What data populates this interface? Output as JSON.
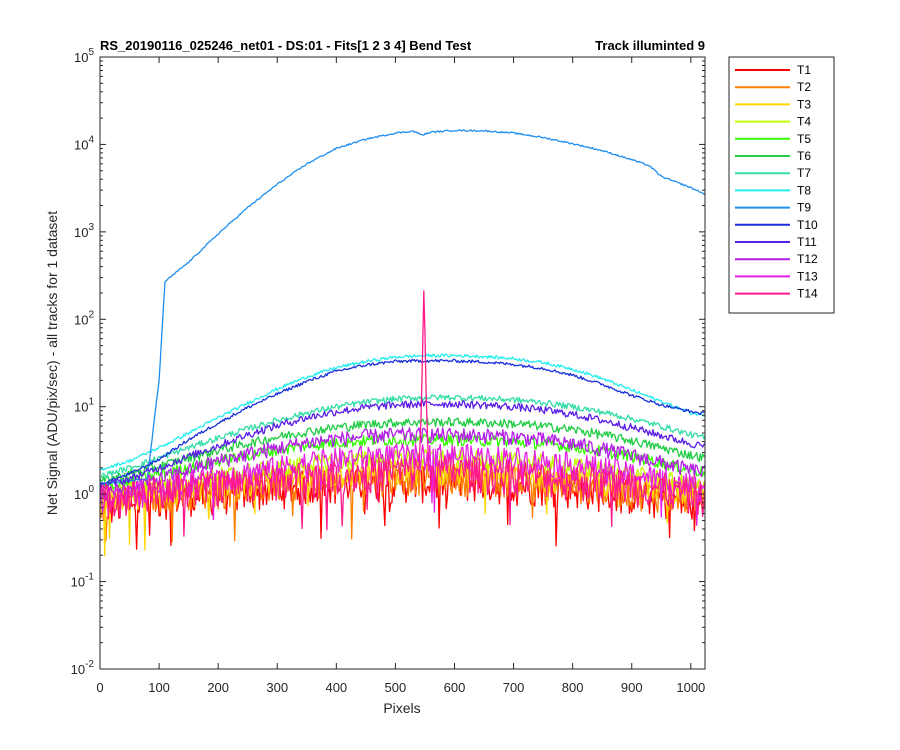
{
  "chart_data": {
    "type": "line",
    "title": "RS_20190116_025246_net01 - DS:01 - Fits[1  2  3  4]   Bend Test",
    "title_right": "Track illuminted 9",
    "xlabel": "Pixels",
    "ylabel": "Net Signal (ADU/pix/sec) - all tracks for 1 dataset",
    "xlim": [
      0,
      1024
    ],
    "ylim": [
      0.01,
      100000
    ],
    "yscale": "log",
    "grid": false,
    "legend_position": "outside-right",
    "x_ticks": [
      0,
      100,
      200,
      300,
      400,
      500,
      600,
      700,
      800,
      900,
      1000
    ],
    "y_ticks": [
      {
        "base": "10",
        "exp": "-2",
        "value": 0.01
      },
      {
        "base": "10",
        "exp": "-1",
        "value": 0.1
      },
      {
        "base": "10",
        "exp": "0",
        "value": 1
      },
      {
        "base": "10",
        "exp": "1",
        "value": 10
      },
      {
        "base": "10",
        "exp": "2",
        "value": 100
      },
      {
        "base": "10",
        "exp": "3",
        "value": 1000
      },
      {
        "base": "10",
        "exp": "4",
        "value": 10000
      },
      {
        "base": "10",
        "exp": "5",
        "value": 100000
      }
    ],
    "series": [
      {
        "name": "T1",
        "color": "#ff0000",
        "x": [
          0,
          50,
          100,
          150,
          200,
          250,
          300,
          350,
          400,
          450,
          500,
          550,
          600,
          650,
          700,
          750,
          800,
          850,
          900,
          950,
          1000,
          1024
        ],
        "y": [
          0.7,
          0.8,
          0.9,
          1.0,
          1.0,
          1.1,
          1.2,
          1.3,
          1.3,
          1.4,
          1.4,
          1.4,
          1.4,
          1.4,
          1.3,
          1.3,
          1.2,
          1.1,
          1.0,
          0.9,
          0.8,
          0.8
        ],
        "noise": 0.45
      },
      {
        "name": "T2",
        "color": "#ff7f00",
        "x": [
          0,
          50,
          100,
          150,
          200,
          250,
          300,
          350,
          400,
          450,
          500,
          550,
          600,
          650,
          700,
          750,
          800,
          850,
          900,
          950,
          1000,
          1024
        ],
        "y": [
          0.8,
          0.9,
          1.0,
          1.1,
          1.1,
          1.2,
          1.3,
          1.4,
          1.5,
          1.5,
          1.6,
          1.6,
          1.6,
          1.5,
          1.5,
          1.4,
          1.3,
          1.2,
          1.1,
          1.0,
          0.9,
          0.9
        ],
        "noise": 0.4
      },
      {
        "name": "T3",
        "color": "#ffd700",
        "x": [
          0,
          50,
          100,
          150,
          200,
          250,
          300,
          350,
          400,
          450,
          500,
          550,
          600,
          650,
          700,
          750,
          800,
          850,
          900,
          950,
          1000,
          1024
        ],
        "y": [
          0.9,
          1.0,
          1.1,
          1.2,
          1.3,
          1.4,
          1.5,
          1.6,
          1.7,
          1.8,
          1.8,
          1.9,
          1.8,
          1.8,
          1.7,
          1.6,
          1.5,
          1.4,
          1.3,
          1.2,
          1.1,
          1.0
        ],
        "noise": 0.35
      },
      {
        "name": "T4",
        "color": "#bfff00",
        "x": [
          0,
          50,
          100,
          150,
          200,
          250,
          300,
          350,
          400,
          450,
          500,
          550,
          600,
          650,
          700,
          750,
          800,
          850,
          900,
          950,
          1000,
          1024
        ],
        "y": [
          1.0,
          1.1,
          1.3,
          1.4,
          1.6,
          1.8,
          2.0,
          2.2,
          2.4,
          2.5,
          2.6,
          2.6,
          2.6,
          2.5,
          2.4,
          2.3,
          2.1,
          1.9,
          1.7,
          1.5,
          1.3,
          1.2
        ],
        "noise": 0.25
      },
      {
        "name": "T5",
        "color": "#33ff00",
        "x": [
          0,
          50,
          100,
          150,
          200,
          250,
          300,
          350,
          400,
          450,
          500,
          550,
          600,
          650,
          700,
          750,
          800,
          850,
          900,
          950,
          1000,
          1024
        ],
        "y": [
          1.2,
          1.4,
          1.7,
          2.0,
          2.4,
          2.8,
          3.2,
          3.6,
          3.9,
          4.1,
          4.2,
          4.2,
          4.2,
          4.1,
          4.0,
          3.8,
          3.5,
          3.1,
          2.7,
          2.3,
          1.9,
          1.8
        ],
        "noise": 0.15
      },
      {
        "name": "T6",
        "color": "#22cc44",
        "x": [
          0,
          50,
          100,
          150,
          200,
          250,
          300,
          350,
          400,
          450,
          500,
          550,
          600,
          650,
          700,
          750,
          800,
          850,
          900,
          950,
          1000,
          1024
        ],
        "y": [
          1.4,
          1.7,
          2.1,
          2.6,
          3.2,
          3.8,
          4.5,
          5.2,
          5.8,
          6.3,
          6.6,
          6.7,
          6.7,
          6.6,
          6.4,
          6.0,
          5.5,
          4.8,
          4.1,
          3.4,
          2.8,
          2.6
        ],
        "noise": 0.12
      },
      {
        "name": "T7",
        "color": "#33ddaa",
        "x": [
          0,
          50,
          100,
          150,
          200,
          250,
          300,
          350,
          400,
          450,
          500,
          550,
          600,
          650,
          700,
          750,
          800,
          850,
          900,
          950,
          1000,
          1024
        ],
        "y": [
          1.6,
          2.0,
          2.6,
          3.4,
          4.4,
          5.6,
          7.0,
          8.5,
          10.0,
          11.3,
          12.3,
          12.8,
          12.8,
          12.5,
          12.0,
          11.2,
          10.0,
          8.7,
          7.3,
          6.0,
          4.8,
          4.4
        ],
        "noise": 0.08
      },
      {
        "name": "T8",
        "color": "#22eeee",
        "x": [
          0,
          50,
          100,
          150,
          200,
          250,
          300,
          350,
          400,
          450,
          500,
          550,
          600,
          650,
          700,
          750,
          800,
          850,
          900,
          950,
          1000,
          1024
        ],
        "y": [
          1.9,
          2.4,
          3.4,
          5.0,
          7.5,
          11.0,
          16.0,
          22.0,
          28.0,
          33.0,
          37.0,
          38.5,
          38.5,
          37.5,
          35.5,
          32.0,
          27.0,
          21.0,
          15.5,
          11.5,
          8.5,
          8.0
        ],
        "noise": 0.04
      },
      {
        "name": "T9",
        "color": "#1f8fef",
        "x": [
          0,
          80,
          100,
          110,
          150,
          200,
          250,
          300,
          350,
          400,
          450,
          500,
          530,
          545,
          560,
          600,
          650,
          700,
          750,
          800,
          850,
          900,
          930,
          950,
          1000,
          1024
        ],
        "y": [
          1.3,
          1.5,
          20,
          270,
          450,
          950,
          1900,
          3500,
          6000,
          9000,
          11500,
          13500,
          14200,
          12800,
          13800,
          14500,
          14300,
          13500,
          12000,
          10200,
          8500,
          6700,
          5700,
          4300,
          3200,
          2700
        ],
        "noise": 0.02
      },
      {
        "name": "T10",
        "color": "#1a2fd9",
        "x": [
          0,
          50,
          100,
          150,
          200,
          250,
          300,
          350,
          400,
          450,
          500,
          550,
          600,
          650,
          700,
          750,
          800,
          850,
          900,
          950,
          1000,
          1024
        ],
        "y": [
          1.3,
          1.7,
          2.5,
          4.2,
          6.5,
          9.8,
          14.0,
          19.5,
          25.5,
          30.0,
          33.0,
          33.5,
          33.5,
          32.5,
          30.5,
          27.5,
          23.0,
          18.0,
          13.5,
          10.5,
          8.8,
          8.3
        ],
        "noise": 0.04
      },
      {
        "name": "T11",
        "color": "#5a1ee6",
        "x": [
          0,
          50,
          100,
          150,
          200,
          250,
          300,
          350,
          400,
          450,
          500,
          550,
          600,
          650,
          700,
          750,
          800,
          850,
          900,
          950,
          1000,
          1024
        ],
        "y": [
          1.2,
          1.5,
          2.0,
          2.7,
          3.6,
          4.8,
          6.1,
          7.5,
          8.8,
          9.8,
          10.5,
          10.8,
          10.8,
          10.5,
          10.0,
          9.2,
          8.2,
          7.0,
          5.8,
          4.7,
          3.8,
          3.5
        ],
        "noise": 0.1
      },
      {
        "name": "T12",
        "color": "#b31ee6",
        "x": [
          0,
          50,
          100,
          150,
          200,
          250,
          300,
          350,
          400,
          450,
          500,
          550,
          600,
          650,
          700,
          750,
          800,
          850,
          900,
          950,
          1000,
          1024
        ],
        "y": [
          1.0,
          1.2,
          1.5,
          1.9,
          2.4,
          2.9,
          3.4,
          3.9,
          4.3,
          4.6,
          4.8,
          4.8,
          4.8,
          4.7,
          4.5,
          4.2,
          3.8,
          3.3,
          2.8,
          2.3,
          1.9,
          1.8
        ],
        "noise": 0.2
      },
      {
        "name": "T13",
        "color": "#e61ee6",
        "x": [
          0,
          50,
          100,
          150,
          200,
          250,
          300,
          350,
          400,
          450,
          500,
          550,
          600,
          650,
          700,
          750,
          800,
          850,
          900,
          950,
          1000,
          1024
        ],
        "y": [
          0.9,
          1.0,
          1.2,
          1.4,
          1.6,
          1.8,
          2.0,
          2.3,
          2.5,
          2.7,
          2.8,
          2.8,
          2.8,
          2.7,
          2.6,
          2.4,
          2.2,
          2.0,
          1.7,
          1.5,
          1.3,
          1.2
        ],
        "noise": 0.35
      },
      {
        "name": "T14",
        "color": "#ff1a8c",
        "x": [
          0,
          50,
          100,
          150,
          200,
          250,
          300,
          350,
          400,
          450,
          500,
          540,
          545,
          548,
          551,
          556,
          600,
          650,
          700,
          750,
          800,
          850,
          900,
          950,
          1000,
          1024
        ],
        "y": [
          0.9,
          1.0,
          1.1,
          1.2,
          1.3,
          1.4,
          1.5,
          1.6,
          1.7,
          1.8,
          1.9,
          1.9,
          20,
          300,
          20,
          1.9,
          1.9,
          1.8,
          1.7,
          1.6,
          1.5,
          1.4,
          1.3,
          1.2,
          1.0,
          1.0
        ],
        "noise": 0.45
      }
    ]
  }
}
